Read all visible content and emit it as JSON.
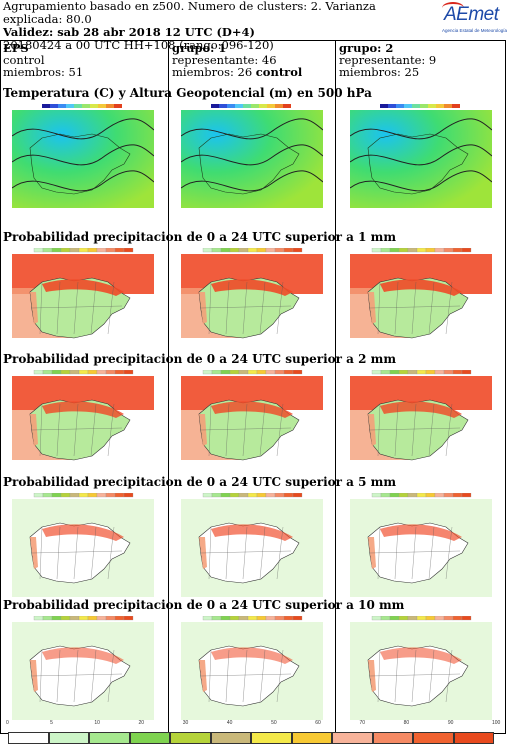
{
  "header": {
    "line1": "Agrupamiento basado en z500. Numero de clusters: 2. Varianza explicada: 80.0",
    "line2": "Validez: sab 28 abr 2018 12 UTC (D+4)",
    "line3": "20180424 a 00 UTC HH+108 (rango:096-120)"
  },
  "logo": {
    "name": "AEmet",
    "subtitle": "Agencia Estatal de Meteorología"
  },
  "columns": [
    {
      "title": "EPS",
      "line2": "control",
      "line3": "miembros: 51"
    },
    {
      "title": "grupo: 1",
      "line2": "representante: 46",
      "line3_prefix": "miembros: 26 ",
      "line3_bold": "control"
    },
    {
      "title": "grupo: 2",
      "line2": "representante: 9",
      "line3": "miembros: 25"
    }
  ],
  "sections": [
    {
      "title": "Temperatura (C) y Altura Geopotencial (m) en 500 hPa",
      "kind": "temperature"
    },
    {
      "title": "Probabilidad precipitacion de 0 a 24 UTC superior a 1 mm",
      "kind": "prob",
      "level": 1
    },
    {
      "title": "Probabilidad precipitacion de 0 a 24 UTC superior a 2 mm",
      "kind": "prob",
      "level": 2
    },
    {
      "title": "Probabilidad precipitacion de 0 a 24 UTC superior a 5 mm",
      "kind": "prob",
      "level": 5
    },
    {
      "title": "Probabilidad precipitacion de 0 a 24 UTC superior a 10 mm",
      "kind": "prob",
      "level": 10
    }
  ],
  "legend": {
    "ticks": [
      "0",
      "5",
      "10",
      "20",
      "30",
      "40",
      "50",
      "60",
      "70",
      "80",
      "90",
      "100"
    ],
    "colors": [
      "#ffffff",
      "#cdf5c8",
      "#a6e88f",
      "#7fd350",
      "#b5d33a",
      "#c9b87a",
      "#f4e94a",
      "#f7c934",
      "#f7b39a",
      "#f58a64",
      "#f06230",
      "#e84a1e"
    ]
  },
  "colors": {
    "temp_cold": "#1bc3f0",
    "temp_mid": "#3fdc72",
    "temp_warm": "#9ee43a",
    "prob_high": "#f04a28",
    "prob_mid": "#f4a07a",
    "prob_low": "#b7ea9c"
  }
}
